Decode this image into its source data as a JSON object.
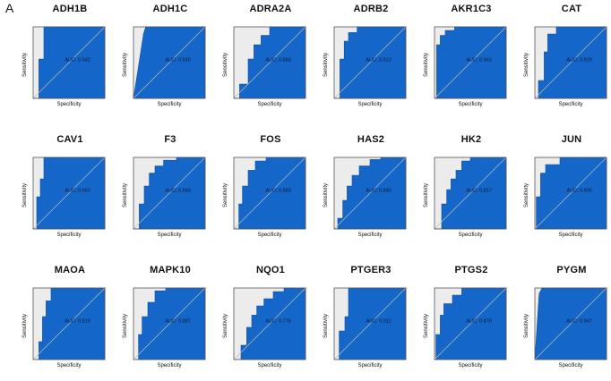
{
  "panel_label": "A",
  "chart_data": [
    {
      "type": "area",
      "title": "ADH1B",
      "xlabel": "Specificity",
      "ylabel": "Sensitivity",
      "annotation": "AUC: 0.942",
      "auc": 0.942,
      "x": [
        0,
        0.08,
        0.08,
        0.15,
        0.15,
        1
      ],
      "y": [
        0,
        0,
        0.55,
        0.55,
        1,
        1
      ],
      "xlim": [
        0,
        1
      ],
      "ylim": [
        0,
        1
      ]
    },
    {
      "type": "area",
      "title": "ADH1C",
      "xlabel": "Specificity",
      "ylabel": "Sensitivity",
      "annotation": "AUC: 0.930",
      "auc": 0.93,
      "x": [
        0,
        0.14,
        0.17,
        1
      ],
      "y": [
        0,
        0.9,
        1,
        1
      ],
      "xlim": [
        0,
        1
      ],
      "ylim": [
        0,
        1
      ]
    },
    {
      "type": "area",
      "title": "ADRA2A",
      "xlabel": "Specificity",
      "ylabel": "Sensitivity",
      "annotation": "AUC: 0.883",
      "auc": 0.883,
      "x": [
        0,
        0.08,
        0.08,
        0.2,
        0.2,
        0.28,
        0.28,
        0.38,
        0.38,
        0.5,
        0.5,
        1
      ],
      "y": [
        0,
        0,
        0.2,
        0.2,
        0.55,
        0.55,
        0.75,
        0.75,
        0.88,
        0.88,
        1,
        1
      ],
      "xlim": [
        0,
        1
      ],
      "ylim": [
        0,
        1
      ]
    },
    {
      "type": "area",
      "title": "ADRB2",
      "xlabel": "Specificity",
      "ylabel": "Sensitivity",
      "annotation": "AUC: 0.913",
      "auc": 0.913,
      "x": [
        0,
        0.08,
        0.08,
        0.14,
        0.14,
        0.2,
        0.2,
        0.32,
        0.32,
        1
      ],
      "y": [
        0,
        0,
        0.55,
        0.55,
        0.8,
        0.8,
        0.92,
        0.92,
        1,
        1
      ],
      "xlim": [
        0,
        1
      ],
      "ylim": [
        0,
        1
      ]
    },
    {
      "type": "area",
      "title": "AKR1C3",
      "xlabel": "Specificity",
      "ylabel": "Sensitivity",
      "annotation": "AUC: 0.963",
      "auc": 0.963,
      "x": [
        0,
        0.03,
        0.03,
        0.08,
        0.08,
        0.15,
        0.15,
        0.28,
        0.28,
        1
      ],
      "y": [
        0,
        0,
        0.75,
        0.75,
        0.88,
        0.88,
        0.95,
        0.95,
        1,
        1
      ],
      "xlim": [
        0,
        1
      ],
      "ylim": [
        0,
        1
      ]
    },
    {
      "type": "area",
      "title": "CAT",
      "xlabel": "Specificity",
      "ylabel": "Sensitivity",
      "annotation": "AUC: 0.929",
      "auc": 0.929,
      "x": [
        0,
        0.05,
        0.05,
        0.13,
        0.13,
        0.18,
        0.18,
        0.3,
        0.3,
        1
      ],
      "y": [
        0,
        0,
        0.25,
        0.25,
        0.65,
        0.65,
        0.9,
        0.9,
        1,
        1
      ],
      "xlim": [
        0,
        1
      ],
      "ylim": [
        0,
        1
      ]
    },
    {
      "type": "area",
      "title": "CAV1",
      "xlabel": "Specificity",
      "ylabel": "Sensitivity",
      "annotation": "AUC: 0.962",
      "auc": 0.962,
      "x": [
        0,
        0.05,
        0.05,
        0.1,
        0.1,
        0.15,
        0.15,
        1
      ],
      "y": [
        0,
        0,
        0.45,
        0.45,
        0.7,
        0.7,
        1,
        1
      ],
      "xlim": [
        0,
        1
      ],
      "ylim": [
        0,
        1
      ]
    },
    {
      "type": "area",
      "title": "F3",
      "xlabel": "Specificity",
      "ylabel": "Sensitivity",
      "annotation": "AUC: 0.843",
      "auc": 0.843,
      "x": [
        0,
        0.08,
        0.08,
        0.15,
        0.15,
        0.22,
        0.22,
        0.3,
        0.3,
        0.42,
        0.42,
        0.6,
        0.6,
        1
      ],
      "y": [
        0,
        0,
        0.35,
        0.35,
        0.6,
        0.6,
        0.78,
        0.78,
        0.88,
        0.88,
        0.96,
        0.96,
        1,
        1
      ],
      "xlim": [
        0,
        1
      ],
      "ylim": [
        0,
        1
      ]
    },
    {
      "type": "area",
      "title": "FOS",
      "xlabel": "Specificity",
      "ylabel": "Sensitivity",
      "annotation": "AUC: 0.883",
      "auc": 0.883,
      "x": [
        0,
        0.07,
        0.07,
        0.12,
        0.12,
        0.2,
        0.2,
        0.3,
        0.3,
        0.45,
        0.45,
        1
      ],
      "y": [
        0,
        0,
        0.35,
        0.35,
        0.6,
        0.6,
        0.82,
        0.82,
        0.95,
        0.95,
        1,
        1
      ],
      "xlim": [
        0,
        1
      ],
      "ylim": [
        0,
        1
      ]
    },
    {
      "type": "area",
      "title": "HAS2",
      "xlabel": "Specificity",
      "ylabel": "Sensitivity",
      "annotation": "AUC: 0.840",
      "auc": 0.84,
      "x": [
        0,
        0.05,
        0.05,
        0.12,
        0.12,
        0.18,
        0.18,
        0.25,
        0.25,
        0.35,
        0.35,
        0.5,
        0.5,
        0.65,
        0.65,
        1
      ],
      "y": [
        0,
        0,
        0.15,
        0.15,
        0.4,
        0.4,
        0.6,
        0.6,
        0.75,
        0.75,
        0.88,
        0.88,
        0.97,
        0.97,
        1,
        1
      ],
      "xlim": [
        0,
        1
      ],
      "ylim": [
        0,
        1
      ]
    },
    {
      "type": "area",
      "title": "HK2",
      "xlabel": "Specificity",
      "ylabel": "Sensitivity",
      "annotation": "AUC: 0.817",
      "auc": 0.817,
      "x": [
        0,
        0.1,
        0.1,
        0.17,
        0.17,
        0.23,
        0.23,
        0.3,
        0.3,
        0.38,
        0.38,
        0.5,
        0.5,
        1
      ],
      "y": [
        0,
        0,
        0.35,
        0.35,
        0.55,
        0.55,
        0.7,
        0.7,
        0.82,
        0.82,
        0.95,
        0.95,
        1,
        1
      ],
      "xlim": [
        0,
        1
      ],
      "ylim": [
        0,
        1
      ]
    },
    {
      "type": "area",
      "title": "JUN",
      "xlabel": "Specificity",
      "ylabel": "Sensitivity",
      "annotation": "AUC: 0.905",
      "auc": 0.905,
      "x": [
        0,
        0.02,
        0.02,
        0.08,
        0.08,
        0.15,
        0.15,
        0.35,
        0.35,
        1
      ],
      "y": [
        0,
        0,
        0.45,
        0.45,
        0.78,
        0.78,
        0.9,
        0.9,
        1,
        1
      ],
      "xlim": [
        0,
        1
      ],
      "ylim": [
        0,
        1
      ]
    },
    {
      "type": "area",
      "title": "MAOA",
      "xlabel": "Specificity",
      "ylabel": "Sensitivity",
      "annotation": "AUC: 0.910",
      "auc": 0.91,
      "x": [
        0,
        0.08,
        0.08,
        0.13,
        0.13,
        0.18,
        0.18,
        0.25,
        0.25,
        1
      ],
      "y": [
        0,
        0,
        0.25,
        0.25,
        0.6,
        0.6,
        0.82,
        0.82,
        1,
        1
      ],
      "xlim": [
        0,
        1
      ],
      "ylim": [
        0,
        1
      ]
    },
    {
      "type": "area",
      "title": "MAPK10",
      "xlabel": "Specificity",
      "ylabel": "Sensitivity",
      "annotation": "AUC: 0.887",
      "auc": 0.887,
      "x": [
        0,
        0.07,
        0.07,
        0.12,
        0.12,
        0.2,
        0.2,
        0.3,
        0.3,
        0.45,
        0.45,
        1
      ],
      "y": [
        0,
        0,
        0.35,
        0.35,
        0.6,
        0.6,
        0.8,
        0.8,
        0.96,
        0.96,
        1,
        1
      ],
      "xlim": [
        0,
        1
      ],
      "ylim": [
        0,
        1
      ]
    },
    {
      "type": "area",
      "title": "NQO1",
      "xlabel": "Specificity",
      "ylabel": "Sensitivity",
      "annotation": "AUC: 0.778",
      "auc": 0.778,
      "x": [
        0,
        0.1,
        0.1,
        0.18,
        0.18,
        0.25,
        0.25,
        0.32,
        0.32,
        0.42,
        0.42,
        0.55,
        0.55,
        0.7,
        0.7,
        1
      ],
      "y": [
        0,
        0,
        0.2,
        0.2,
        0.45,
        0.45,
        0.62,
        0.62,
        0.75,
        0.75,
        0.85,
        0.85,
        0.95,
        0.95,
        1,
        1
      ],
      "xlim": [
        0,
        1
      ],
      "ylim": [
        0,
        1
      ]
    },
    {
      "type": "area",
      "title": "PTGER3",
      "xlabel": "Specificity",
      "ylabel": "Sensitivity",
      "annotation": "AUC: 0.911",
      "auc": 0.911,
      "x": [
        0,
        0.07,
        0.07,
        0.15,
        0.15,
        0.2,
        0.2,
        1
      ],
      "y": [
        0,
        0,
        0.4,
        0.4,
        0.6,
        0.6,
        1,
        1
      ],
      "xlim": [
        0,
        1
      ],
      "ylim": [
        0,
        1
      ]
    },
    {
      "type": "area",
      "title": "PTGS2",
      "xlabel": "Specificity",
      "ylabel": "Sensitivity",
      "annotation": "AUC: 0.878",
      "auc": 0.878,
      "x": [
        0,
        0.02,
        0.02,
        0.08,
        0.08,
        0.13,
        0.13,
        0.25,
        0.25,
        0.38,
        0.38,
        1
      ],
      "y": [
        0,
        0,
        0.35,
        0.35,
        0.62,
        0.62,
        0.78,
        0.78,
        0.9,
        0.9,
        1,
        1
      ],
      "xlim": [
        0,
        1
      ],
      "ylim": [
        0,
        1
      ]
    },
    {
      "type": "area",
      "title": "PYGM",
      "xlabel": "Specificity",
      "ylabel": "Sensitivity",
      "annotation": "AUC: 0.947",
      "auc": 0.947,
      "x": [
        0,
        0.06,
        0.1,
        1
      ],
      "y": [
        0,
        0.92,
        1,
        1
      ],
      "xlim": [
        0,
        1
      ],
      "ylim": [
        0,
        1
      ]
    }
  ],
  "colors": {
    "fill": "#1466c8",
    "background": "#ececec",
    "border": "#555555",
    "diagonal": "#bcbcbc"
  }
}
